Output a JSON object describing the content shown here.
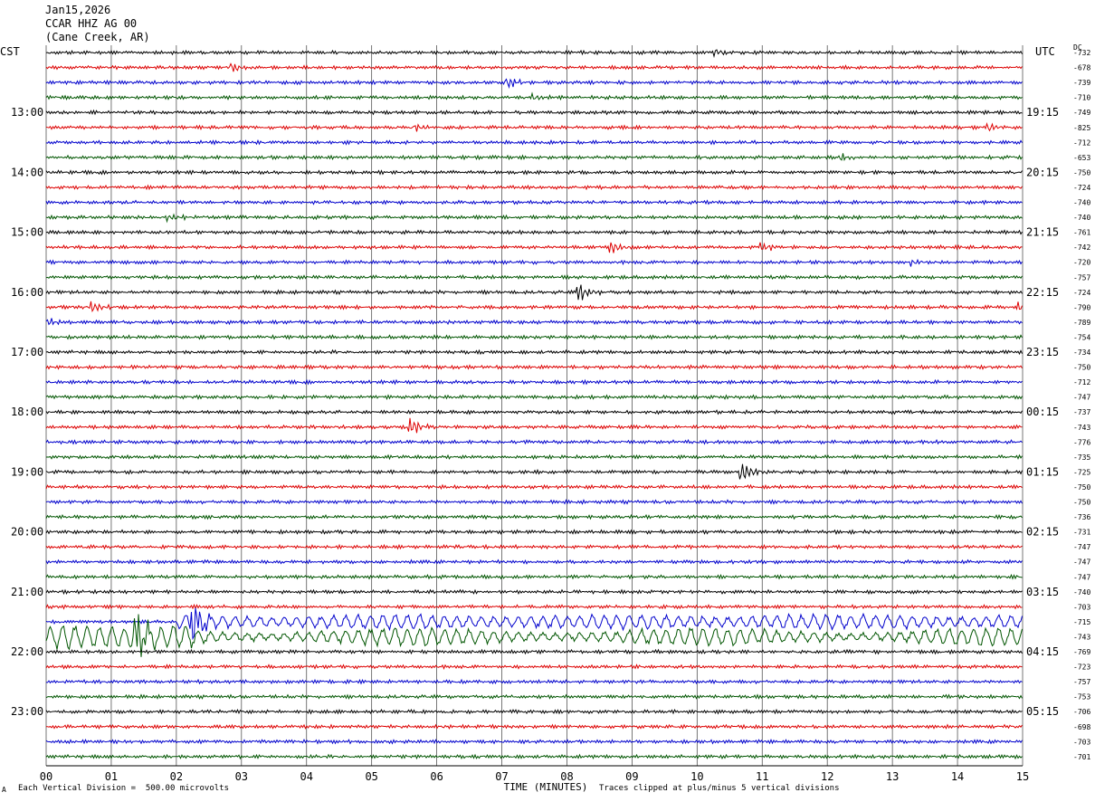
{
  "header": {
    "date": "Jan15,2026",
    "station": "CCAR HHZ AG 00",
    "location": "(Cane Creek, AR)"
  },
  "corners": {
    "left_tz": "CST",
    "right_tz": "UTC",
    "dc_label": "DC"
  },
  "footer": {
    "left_mark": "A",
    "scale_note": "Each Vertical Division =  500.00 microvolts",
    "clip_note": "Traces clipped at plus/minus 5 vertical divisions"
  },
  "chart_data": {
    "type": "line",
    "xlabel": "TIME (MINUTES)",
    "x_ticks": [
      "00",
      "01",
      "02",
      "03",
      "04",
      "05",
      "06",
      "07",
      "08",
      "09",
      "10",
      "11",
      "12",
      "13",
      "14",
      "15"
    ],
    "xlim": [
      0,
      15
    ],
    "trace_colors": [
      "#000000",
      "#dd0000",
      "#0000cc",
      "#005500"
    ],
    "left_hour_labels": [
      "13:00",
      "14:00",
      "15:00",
      "16:00",
      "17:00",
      "18:00",
      "19:00",
      "20:00",
      "21:00",
      "22:00",
      "23:00"
    ],
    "right_hour_labels": [
      "19:15",
      "20:15",
      "21:15",
      "22:15",
      "23:15",
      "00:15",
      "01:15",
      "02:15",
      "03:15",
      "04:15",
      "05:15"
    ],
    "dc_offsets": [
      "-732",
      "-678",
      "-739",
      "-710",
      "-749",
      "-825",
      "-712",
      "-653",
      "-750",
      "-724",
      "-740",
      "-740",
      "-761",
      "-742",
      "-720",
      "-757",
      "-724",
      "-790",
      "-789",
      "-754",
      "-734",
      "-750",
      "-712",
      "-747",
      "-737",
      "-743",
      "-776",
      "-735",
      "-725",
      "-750",
      "-750",
      "-736",
      "-731",
      "-747",
      "-747",
      "-747",
      "-740",
      "-703",
      "-715",
      "-743",
      "-769",
      "-723",
      "-757",
      "-753",
      "-706",
      "-698",
      "-703",
      "-701"
    ],
    "events": [
      {
        "trace": 0,
        "minute": 10.3,
        "amplitude": 4
      },
      {
        "trace": 1,
        "minute": 2.85,
        "amplitude": 5
      },
      {
        "trace": 2,
        "minute": 7.1,
        "amplitude": 6
      },
      {
        "trace": 3,
        "minute": 7.5,
        "amplitude": 3
      },
      {
        "trace": 5,
        "minute": 5.7,
        "amplitude": 4
      },
      {
        "trace": 5,
        "minute": 14.5,
        "amplitude": 4
      },
      {
        "trace": 7,
        "minute": 12.2,
        "amplitude": 4
      },
      {
        "trace": 11,
        "minute": 1.9,
        "amplitude": 4
      },
      {
        "trace": 13,
        "minute": 8.7,
        "amplitude": 7
      },
      {
        "trace": 13,
        "minute": 11.0,
        "amplitude": 6
      },
      {
        "trace": 14,
        "minute": 13.3,
        "amplitude": 4
      },
      {
        "trace": 16,
        "minute": 8.2,
        "amplitude": 10
      },
      {
        "trace": 17,
        "minute": 0.7,
        "amplitude": 7
      },
      {
        "trace": 17,
        "minute": 14.95,
        "amplitude": 6
      },
      {
        "trace": 18,
        "minute": 0.02,
        "amplitude": 6
      },
      {
        "trace": 25,
        "minute": 5.6,
        "amplitude": 10
      },
      {
        "trace": 28,
        "minute": 10.7,
        "amplitude": 12
      },
      {
        "trace": 38,
        "minute": 2.25,
        "amplitude": 28
      },
      {
        "trace": 39,
        "minute": 1.4,
        "amplitude": 24
      }
    ],
    "long_period_waves": [
      {
        "trace": 38,
        "start_minute": 2.0,
        "end_minute": 15.0,
        "amplitude": 10
      },
      {
        "trace": 39,
        "start_minute": 0.0,
        "end_minute": 15.0,
        "amplitude": 12
      }
    ]
  }
}
